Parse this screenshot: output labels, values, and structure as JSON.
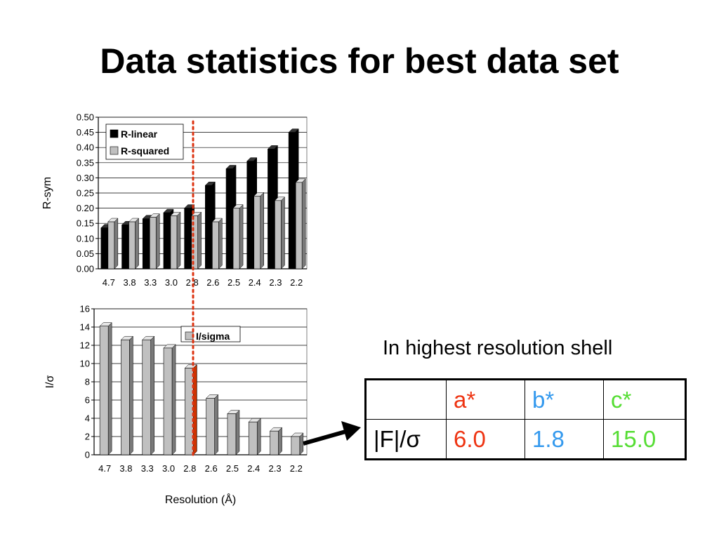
{
  "slide": {
    "title": "Data statistics for best data set",
    "shell_caption": "In highest resolution shell"
  },
  "chart_data": [
    {
      "type": "bar",
      "categories": [
        "4.7",
        "3.8",
        "3.3",
        "3.0",
        "2.8",
        "2.6",
        "2.5",
        "2.4",
        "2.3",
        "2.2"
      ],
      "series": [
        {
          "name": "R-linear",
          "values": [
            0.135,
            0.145,
            0.165,
            0.185,
            0.2,
            0.275,
            0.33,
            0.355,
            0.395,
            0.45
          ],
          "color": "#000000"
        },
        {
          "name": "R-squared",
          "values": [
            0.155,
            0.155,
            0.17,
            0.175,
            0.175,
            0.155,
            0.2,
            0.24,
            0.225,
            0.285
          ],
          "color": "#c0c0c0"
        }
      ],
      "ylabel": "R-sym",
      "xlabel": "",
      "ylim": [
        0,
        0.5
      ],
      "yticks": [
        "0.00",
        "0.05",
        "0.10",
        "0.15",
        "0.20",
        "0.25",
        "0.30",
        "0.35",
        "0.40",
        "0.45",
        "0.50"
      ],
      "grid": true,
      "legend_position": "top-left"
    },
    {
      "type": "bar",
      "categories": [
        "4.7",
        "3.8",
        "3.3",
        "3.0",
        "2.8",
        "2.6",
        "2.5",
        "2.4",
        "2.3",
        "2.2"
      ],
      "series": [
        {
          "name": "I/sigma",
          "values": [
            14.1,
            12.6,
            12.6,
            11.7,
            9.5,
            6.2,
            4.5,
            3.6,
            2.6,
            2.0
          ],
          "color": "#c0c0c0"
        }
      ],
      "ylabel": "I/σ",
      "xlabel": "Resolution (Å)",
      "ylim": [
        0,
        16
      ],
      "yticks": [
        "0",
        "2",
        "4",
        "6",
        "8",
        "10",
        "12",
        "14",
        "16"
      ],
      "grid": true,
      "legend_position": "top-center",
      "highlight_category": "2.8",
      "highlight_color": "#cc3300"
    }
  ],
  "cutoff_line": {
    "category": "2.8",
    "color": "#dd3311"
  },
  "stats_table": {
    "header": [
      "",
      "a*",
      "b*",
      "c*"
    ],
    "header_colors": [
      "#000000",
      "#ee3311",
      "#3399ee",
      "#55dd33"
    ],
    "row_label": "|F|/σ",
    "values": [
      "6.0",
      "1.8",
      "15.0"
    ],
    "value_colors": [
      "#ee3311",
      "#3399ee",
      "#55dd33"
    ]
  }
}
